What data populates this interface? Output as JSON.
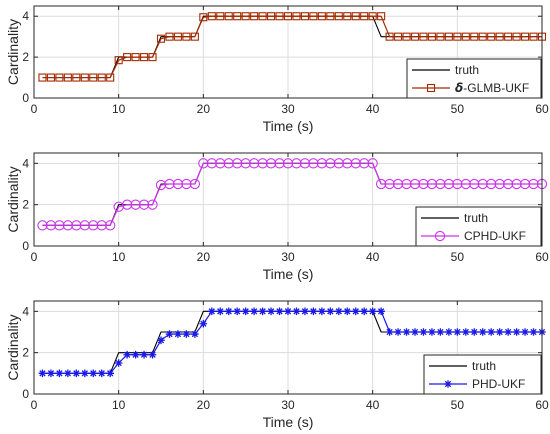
{
  "chart_data": [
    {
      "type": "line",
      "xlabel": "Time (s)",
      "ylabel": "Cardinality",
      "xlim": [
        0,
        60
      ],
      "ylim": [
        0,
        4.5
      ],
      "xticks": [
        "0",
        "10",
        "20",
        "30",
        "40",
        "50",
        "60"
      ],
      "yticks": [
        "0",
        "2",
        "4"
      ],
      "grid": true,
      "legend_position": "bottom-right",
      "series": [
        {
          "name": "truth",
          "color": "#000000",
          "x": [
            1,
            2,
            3,
            4,
            5,
            6,
            7,
            8,
            9,
            10,
            11,
            12,
            13,
            14,
            15,
            16,
            17,
            18,
            19,
            20,
            21,
            22,
            23,
            24,
            25,
            26,
            27,
            28,
            29,
            30,
            31,
            32,
            33,
            34,
            35,
            36,
            37,
            38,
            39,
            40,
            41,
            42,
            43,
            44,
            45,
            46,
            47,
            48,
            49,
            50,
            51,
            52,
            53,
            54,
            55,
            56,
            57,
            58,
            59,
            60
          ],
          "y": [
            1,
            1,
            1,
            1,
            1,
            1,
            1,
            1,
            1,
            2,
            2,
            2,
            2,
            2,
            3,
            3,
            3,
            3,
            3,
            4,
            4,
            4,
            4,
            4,
            4,
            4,
            4,
            4,
            4,
            4,
            4,
            4,
            4,
            4,
            4,
            4,
            4,
            4,
            4,
            4,
            3,
            3,
            3,
            3,
            3,
            3,
            3,
            3,
            3,
            3,
            3,
            3,
            3,
            3,
            3,
            3,
            3,
            3,
            3,
            3
          ]
        },
        {
          "name_symbol": "δ",
          "name": "-GLMB-UKF",
          "color": "#A52A00",
          "marker": "square",
          "x": [
            1,
            2,
            3,
            4,
            5,
            6,
            7,
            8,
            9,
            10,
            11,
            12,
            13,
            14,
            15,
            16,
            17,
            18,
            19,
            20,
            21,
            22,
            23,
            24,
            25,
            26,
            27,
            28,
            29,
            30,
            31,
            32,
            33,
            34,
            35,
            36,
            37,
            38,
            39,
            40,
            41,
            42,
            43,
            44,
            45,
            46,
            47,
            48,
            49,
            50,
            51,
            52,
            53,
            54,
            55,
            56,
            57,
            58,
            59,
            60
          ],
          "y": [
            1,
            1,
            1,
            1,
            1,
            1,
            1,
            1,
            1,
            1.85,
            2,
            2,
            2,
            2,
            2.9,
            3,
            3,
            3,
            3,
            3.95,
            4,
            4,
            4,
            4,
            4,
            4,
            4,
            4,
            4,
            4,
            4,
            4,
            4,
            4,
            4,
            4,
            4,
            4,
            4,
            4,
            4,
            3,
            3,
            3,
            3,
            3,
            3,
            3,
            3,
            3,
            3,
            3,
            3,
            3,
            3,
            3,
            3,
            3,
            3,
            3
          ]
        }
      ]
    },
    {
      "type": "line",
      "xlabel": "Time (s)",
      "ylabel": "Cardinality",
      "xlim": [
        0,
        60
      ],
      "ylim": [
        0,
        4.5
      ],
      "xticks": [
        "0",
        "10",
        "20",
        "30",
        "40",
        "50",
        "60"
      ],
      "yticks": [
        "0",
        "2",
        "4"
      ],
      "grid": true,
      "legend_position": "bottom-right",
      "series": [
        {
          "name": "truth",
          "color": "#000000",
          "x": [
            1,
            2,
            3,
            4,
            5,
            6,
            7,
            8,
            9,
            10,
            11,
            12,
            13,
            14,
            15,
            16,
            17,
            18,
            19,
            20,
            21,
            22,
            23,
            24,
            25,
            26,
            27,
            28,
            29,
            30,
            31,
            32,
            33,
            34,
            35,
            36,
            37,
            38,
            39,
            40,
            41,
            42,
            43,
            44,
            45,
            46,
            47,
            48,
            49,
            50,
            51,
            52,
            53,
            54,
            55,
            56,
            57,
            58,
            59,
            60
          ],
          "y": [
            1,
            1,
            1,
            1,
            1,
            1,
            1,
            1,
            1,
            2,
            2,
            2,
            2,
            2,
            3,
            3,
            3,
            3,
            3,
            4,
            4,
            4,
            4,
            4,
            4,
            4,
            4,
            4,
            4,
            4,
            4,
            4,
            4,
            4,
            4,
            4,
            4,
            4,
            4,
            4,
            3,
            3,
            3,
            3,
            3,
            3,
            3,
            3,
            3,
            3,
            3,
            3,
            3,
            3,
            3,
            3,
            3,
            3,
            3,
            3
          ]
        },
        {
          "name": "CPHD-UKF",
          "color": "#CC33EE",
          "marker": "circle",
          "x": [
            1,
            2,
            3,
            4,
            5,
            6,
            7,
            8,
            9,
            10,
            11,
            12,
            13,
            14,
            15,
            16,
            17,
            18,
            19,
            20,
            21,
            22,
            23,
            24,
            25,
            26,
            27,
            28,
            29,
            30,
            31,
            32,
            33,
            34,
            35,
            36,
            37,
            38,
            39,
            40,
            41,
            42,
            43,
            44,
            45,
            46,
            47,
            48,
            49,
            50,
            51,
            52,
            53,
            54,
            55,
            56,
            57,
            58,
            59,
            60
          ],
          "y": [
            1,
            1,
            1,
            1,
            1,
            1,
            1,
            1,
            1,
            1.9,
            2,
            2,
            2,
            2,
            2.95,
            3,
            3,
            3,
            3,
            4,
            4,
            4,
            4,
            4,
            4,
            4,
            4,
            4,
            4,
            4,
            4,
            4,
            4,
            4,
            4,
            4,
            4,
            4,
            4,
            4,
            3,
            3,
            3,
            3,
            3,
            3,
            3,
            3,
            3,
            3,
            3,
            3,
            3,
            3,
            3,
            3,
            3,
            3,
            3,
            3
          ]
        }
      ]
    },
    {
      "type": "line",
      "xlabel": "Time (s)",
      "ylabel": "Cardinality",
      "xlim": [
        0,
        60
      ],
      "ylim": [
        0,
        4.5
      ],
      "xticks": [
        "0",
        "10",
        "20",
        "30",
        "40",
        "50",
        "60"
      ],
      "yticks": [
        "0",
        "2",
        "4"
      ],
      "grid": true,
      "legend_position": "bottom-right",
      "series": [
        {
          "name": "truth",
          "color": "#000000",
          "x": [
            1,
            2,
            3,
            4,
            5,
            6,
            7,
            8,
            9,
            10,
            11,
            12,
            13,
            14,
            15,
            16,
            17,
            18,
            19,
            20,
            21,
            22,
            23,
            24,
            25,
            26,
            27,
            28,
            29,
            30,
            31,
            32,
            33,
            34,
            35,
            36,
            37,
            38,
            39,
            40,
            41,
            42,
            43,
            44,
            45,
            46,
            47,
            48,
            49,
            50,
            51,
            52,
            53,
            54,
            55,
            56,
            57,
            58,
            59,
            60
          ],
          "y": [
            1,
            1,
            1,
            1,
            1,
            1,
            1,
            1,
            1,
            2,
            2,
            2,
            2,
            2,
            3,
            3,
            3,
            3,
            3,
            4,
            4,
            4,
            4,
            4,
            4,
            4,
            4,
            4,
            4,
            4,
            4,
            4,
            4,
            4,
            4,
            4,
            4,
            4,
            4,
            4,
            3,
            3,
            3,
            3,
            3,
            3,
            3,
            3,
            3,
            3,
            3,
            3,
            3,
            3,
            3,
            3,
            3,
            3,
            3,
            3
          ]
        },
        {
          "name": "PHD-UKF",
          "color": "#1A1AE6",
          "marker": "star",
          "x": [
            1,
            2,
            3,
            4,
            5,
            6,
            7,
            8,
            9,
            10,
            11,
            12,
            13,
            14,
            15,
            16,
            17,
            18,
            19,
            20,
            21,
            22,
            23,
            24,
            25,
            26,
            27,
            28,
            29,
            30,
            31,
            32,
            33,
            34,
            35,
            36,
            37,
            38,
            39,
            40,
            41,
            42,
            43,
            44,
            45,
            46,
            47,
            48,
            49,
            50,
            51,
            52,
            53,
            54,
            55,
            56,
            57,
            58,
            59,
            60
          ],
          "y": [
            1,
            1,
            1,
            1,
            1,
            1,
            1,
            1,
            1,
            1.5,
            1.9,
            1.9,
            1.9,
            1.9,
            2.6,
            2.9,
            2.9,
            2.9,
            2.9,
            3.4,
            4,
            4,
            4,
            4,
            4,
            4,
            4,
            4,
            4,
            4,
            4,
            4,
            4,
            4,
            4,
            4,
            4,
            4,
            4,
            4,
            4,
            3,
            3,
            3,
            3,
            3,
            3,
            3,
            3,
            3,
            3,
            3,
            3,
            3,
            3,
            3,
            3,
            3,
            3,
            3
          ]
        }
      ]
    }
  ]
}
